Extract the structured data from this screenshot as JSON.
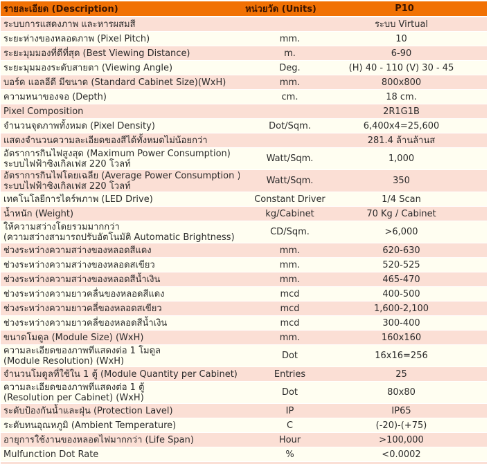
{
  "table": {
    "header": {
      "description": "รายละเอียด (Description)",
      "units": "หน่วยวัด (Units)",
      "model": "P10"
    },
    "rows": [
      {
        "label": "ระบบการแสดงภาพ และหารผสมสี",
        "label2": "",
        "unit": "",
        "value": "ระบบ Virtual"
      },
      {
        "label": "ระยะห่างของหลอดภาพ (Pixel Pitch)",
        "label2": "",
        "unit": "mm.",
        "value": "10"
      },
      {
        "label": "ระยะมุมมองที่ดีที่สุด (Best Viewing Distance)",
        "label2": "",
        "unit": "m.",
        "value": "6-90"
      },
      {
        "label": "ระยะมุมมองระดับสายตา (Viewing Angle)",
        "label2": "",
        "unit": "Deg.",
        "value": "(H) 40 - 110 (V) 30 - 45"
      },
      {
        "label": "บอร์ด แอลอีดี มีขนาด (Standard Cabinet Size)(WxH)",
        "label2": "",
        "unit": "mm.",
        "value": "800x800"
      },
      {
        "label": "ความหนาของจอ (Depth)",
        "label2": "",
        "unit": "cm.",
        "value": "18 cm."
      },
      {
        "label": "Pixel Composition",
        "label2": "",
        "unit": "",
        "value": "2R1G1B"
      },
      {
        "label": "จำนวนจุดภาพทั้งหมด (Pixel Density)",
        "label2": "",
        "unit": "Dot/Sqm.",
        "value": "6,400x4=25,600"
      },
      {
        "label": "แสดงจำนวนความละเอียดของสีได้ทั้งหมดไม่น้อยกว่า",
        "label2": "",
        "unit": "",
        "value": "281.4 ล้านล้านส"
      },
      {
        "label": "อัตราการกินไฟสูงสุด (Maximum Power Consumption)",
        "label2": "ระบบไฟฟ้าซิงเกิลเฟส 220 โวลท์",
        "unit": "Watt/Sqm.",
        "value": "1,000"
      },
      {
        "label": "อัตราการกินไฟโดยเฉลี่ย (Average Power Consumption )",
        "label2": "ระบบไฟฟ้าซิงเกิลเฟส 220 โวลท์",
        "unit": "Watt/Sqm.",
        "value": "350"
      },
      {
        "label": "เทคโนโลยีการไดร์พภาพ (LED Drive)",
        "label2": "",
        "unit": "Constant Driver",
        "value": "1/4 Scan"
      },
      {
        "label": "น้ำหนัก (Weight)",
        "label2": "",
        "unit": "kg/Cabinet",
        "value": "70 Kg / Cabinet"
      },
      {
        "label": "ให้ความสว่างโดยรวมมากกว่า",
        "label2": "(ความสว่างสามารถปรับอัตโนมัติ Automatic Brightness)",
        "unit": "CD/Sqm.",
        "value": ">6,000"
      },
      {
        "label": "ช่วงระหว่างความสว่างของหลอดสีแดง",
        "label2": "",
        "unit": "mm.",
        "value": "620-630"
      },
      {
        "label": "ช่วงระหว่างความสว่างของหลอดสเขียว",
        "label2": "",
        "unit": "mm.",
        "value": "520-525"
      },
      {
        "label": "ช่วงระหว่างความสว่างของหลอดสีน้ำเงิน",
        "label2": "",
        "unit": "mm.",
        "value": "465-470"
      },
      {
        "label": "ช่วงระหว่างความยาวคลื่นของหลอดสีแดง",
        "label2": "",
        "unit": "mcd",
        "value": "400-500"
      },
      {
        "label": "ช่วงระหว่างความยาวคลี่ของหลอดสเขียว",
        "label2": "",
        "unit": "mcd",
        "value": "1,600-2,100"
      },
      {
        "label": "ช่วงระหว่างความยาวคลี่ของหลอดสีน้ำเงิน",
        "label2": "",
        "unit": "mcd",
        "value": "300-400"
      },
      {
        "label": "ขนาดโมดูล (Module Size) (WxH)",
        "label2": "",
        "unit": "mm.",
        "value": "160x160"
      },
      {
        "label": "ความละเอียดของภาพที่แสดงต่อ 1 โมดูล",
        "label2": "(Module Resolution) (WxH)",
        "unit": "Dot",
        "value": "16x16=256"
      },
      {
        "label": "จำนวนโมดูลที่ใช้ใน 1 ตู้ (Module Quantity per Cabinet)",
        "label2": "",
        "unit": "Entries",
        "value": "25"
      },
      {
        "label": "ความละเอียดของภาพที่แสดงต่อ 1 ตู้",
        "label2": "(Resolution per Cabinet) (WxH)",
        "unit": "Dot",
        "value": "80x80"
      },
      {
        "label": "ระดับป้องกันน้ำและฝุ่น (Protection Lavel)",
        "label2": "",
        "unit": "IP",
        "value": "IP65"
      },
      {
        "label": "ระดับทนอุณหภูมิ (Ambient Temperature)",
        "label2": "",
        "unit": "C",
        "value": "(-20)-(+75)"
      },
      {
        "label": "อายุการใช้งานของหลอดไฟมากกว่า (Life Span)",
        "label2": "",
        "unit": "Hour",
        "value": ">100,000"
      },
      {
        "label": "Mulfunction Dot Rate",
        "label2": "",
        "unit": "%",
        "value": "<0.0002"
      }
    ],
    "colors": {
      "header_bg": "#f17104",
      "header_text": "#3a1400",
      "row_pink": "#fbdfd5",
      "row_cream": "#fffef1",
      "body_text": "#2b2b2b"
    }
  }
}
